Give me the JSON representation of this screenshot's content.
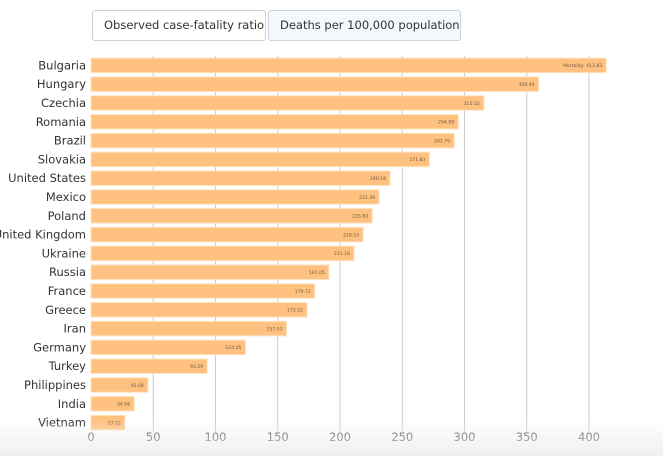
{
  "tabs": [
    {
      "label": "Observed case-fatality ratio",
      "active": false
    },
    {
      "label": "Deaths per 100,000 population",
      "active": true
    }
  ],
  "chart_data": {
    "type": "bar",
    "orientation": "horizontal",
    "title": "",
    "xlabel": "",
    "ylabel": "",
    "xlim": [
      0,
      400
    ],
    "x_ticks": [
      0,
      50,
      100,
      150,
      200,
      250,
      300,
      350,
      400
    ],
    "grid": true,
    "bar_color": "#ffc17f",
    "value_label_prefix_first": "Mortality: ",
    "categories": [
      "Bulgaria",
      "Hungary",
      "Czechia",
      "Romania",
      "Brazil",
      "Slovakia",
      "United States",
      "Mexico",
      "Poland",
      "United Kingdom",
      "Ukraine",
      "Russia",
      "France",
      "Greece",
      "Iran",
      "Germany",
      "Turkey",
      "Philippines",
      "India",
      "Vietnam"
    ],
    "values": [
      413.83,
      359.49,
      315.52,
      294.99,
      291.7,
      271.83,
      240.18,
      231.39,
      225.83,
      218.53,
      211.18,
      191.05,
      179.72,
      173.52,
      157.03,
      124.05,
      93.29,
      45.68,
      34.66,
      27.22
    ],
    "value_labels": [
      "Mortality: 413.83",
      "359.49",
      "315.52",
      "294.99",
      "291.70",
      "271.83",
      "240.18",
      "231.39",
      "225.83",
      "218.53",
      "211.18",
      "191.05",
      "179.72",
      "173.52",
      "157.03",
      "124.05",
      "93.29",
      "45.68",
      "34.66",
      "27.22"
    ]
  }
}
